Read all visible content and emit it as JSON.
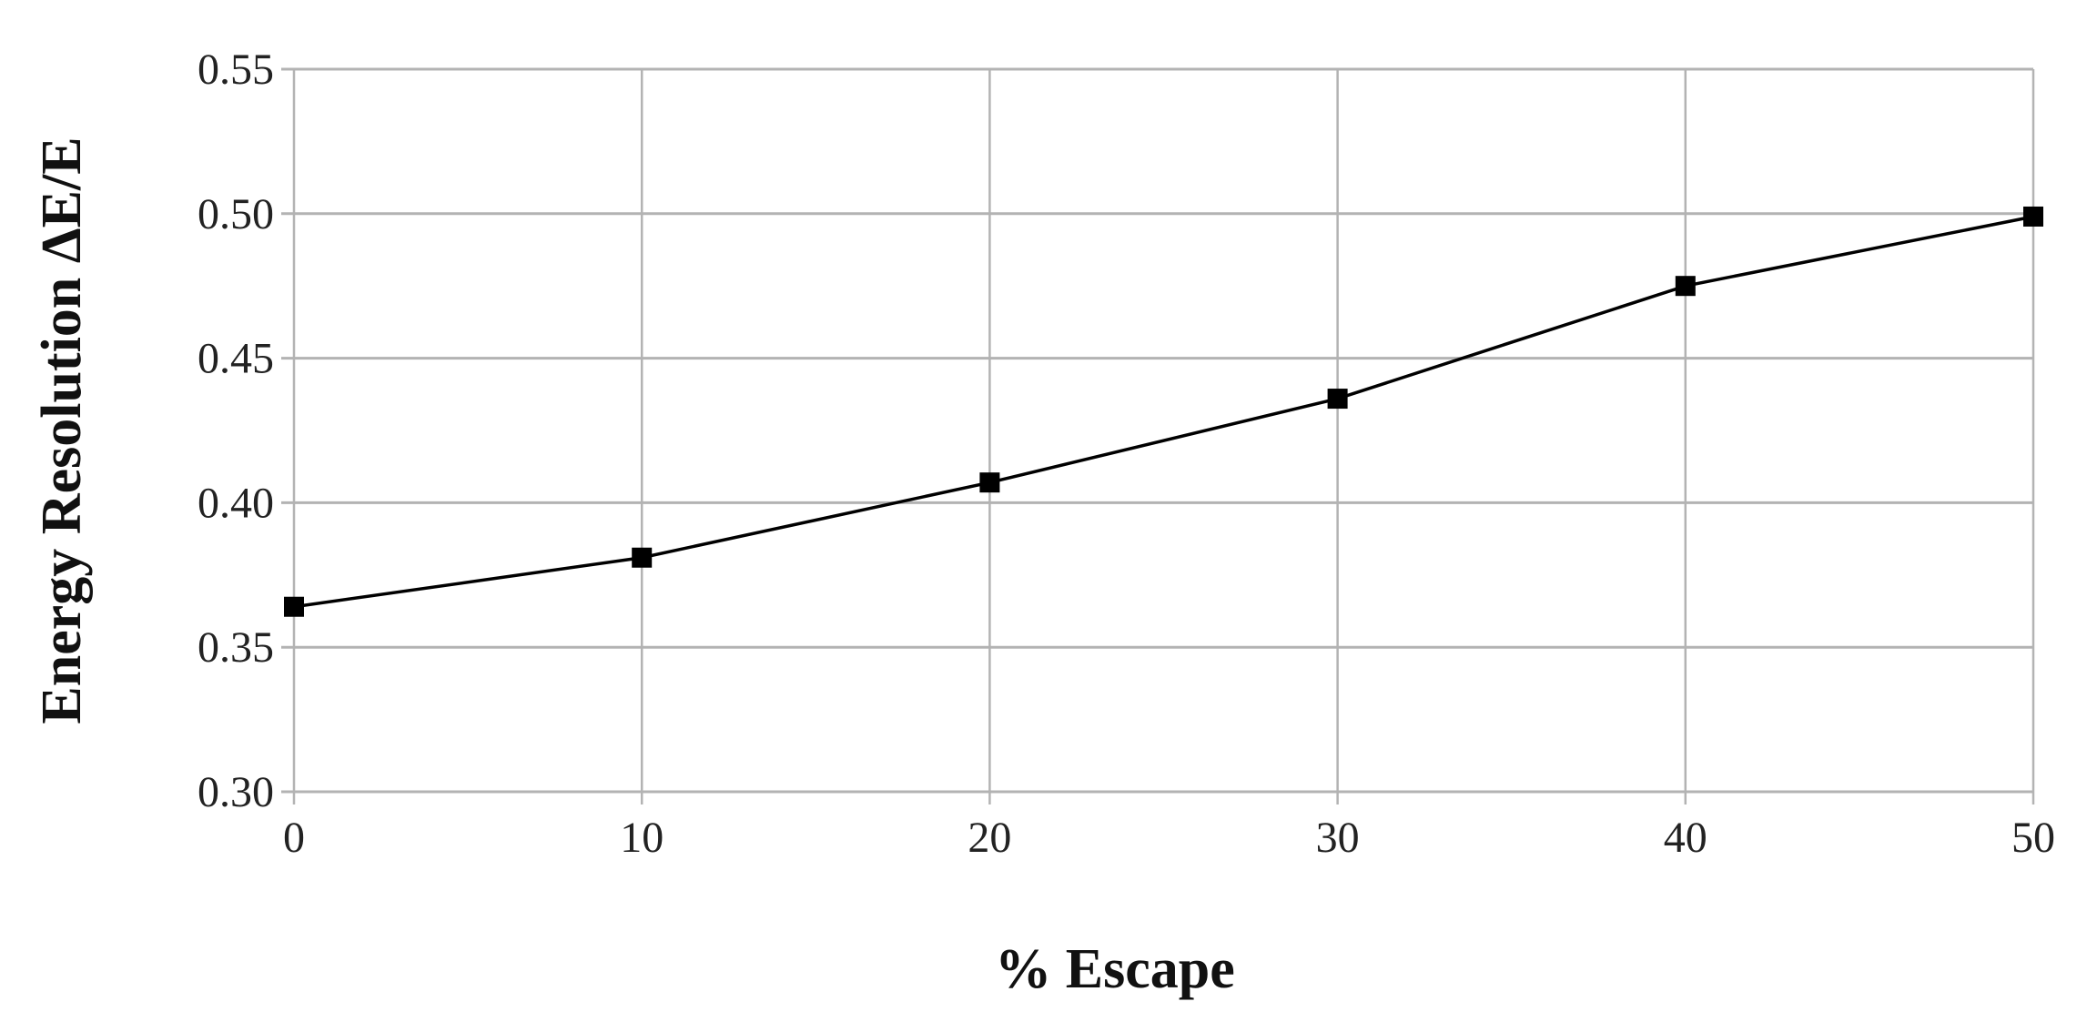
{
  "chart_data": {
    "type": "line",
    "title": "",
    "xlabel": "% Escape",
    "ylabel": "Energy Resolution ΔE/E",
    "xlim": [
      0,
      50
    ],
    "ylim": [
      0.3,
      0.55
    ],
    "x_ticks": [
      "0",
      "10",
      "20",
      "30",
      "40",
      "50"
    ],
    "y_ticks": [
      "0.30",
      "0.35",
      "0.40",
      "0.45",
      "0.50",
      "0.55"
    ],
    "grid": true,
    "legend": "none",
    "marker": "square",
    "line_color": "#000000",
    "grid_color": "#b3b3b3",
    "series": [
      {
        "x": [
          0,
          10,
          20,
          30,
          40,
          50
        ],
        "values": [
          0.364,
          0.381,
          0.407,
          0.436,
          0.475,
          0.499
        ]
      }
    ]
  }
}
